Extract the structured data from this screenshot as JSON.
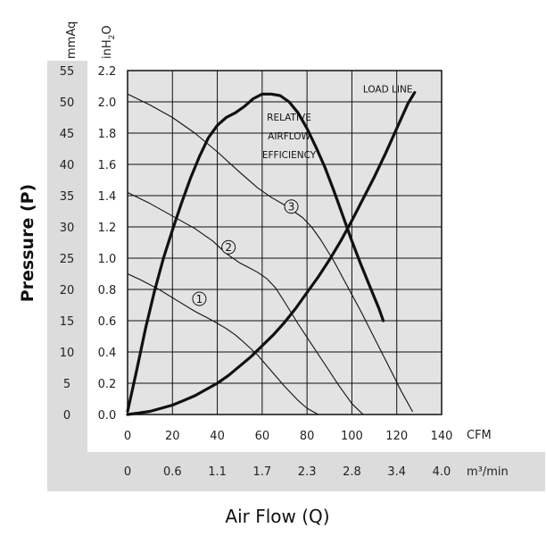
{
  "chart_data": {
    "type": "line",
    "title": "",
    "xlabel": "Air Flow (Q)",
    "ylabel": "Pressure (P)",
    "x_units_primary": "CFM",
    "x_units_secondary": "m³/min",
    "y_unit_left": "mmAq",
    "y_unit_right_base": "inH",
    "y_unit_right_sub": "2",
    "y_unit_right_end": "O",
    "xlim": [
      0,
      140
    ],
    "ylim": [
      0,
      2.2
    ],
    "x_ticks": [
      0,
      20,
      40,
      60,
      80,
      100,
      120,
      140
    ],
    "x_tick_labels": [
      "0",
      "20",
      "40",
      "60",
      "80",
      "100",
      "120",
      "140"
    ],
    "x_ticks_secondary": [
      "0",
      "0.6",
      "1.1",
      "1.7",
      "2.3",
      "2.8",
      "3.4",
      "4.0"
    ],
    "y_ticks": [
      0,
      0.2,
      0.4,
      0.6,
      0.8,
      1.0,
      1.2,
      1.4,
      1.6,
      1.8,
      2.0,
      2.2
    ],
    "y_tick_labels_inH2O": [
      "0.0",
      "0.2",
      "0.4",
      "0.6",
      "0.8",
      "1.0",
      "1.2",
      "1.4",
      "1.6",
      "1.8",
      "2.0",
      "2.2"
    ],
    "y_tick_labels_mmAq": [
      "0",
      "5",
      "10",
      "15",
      "20",
      "25",
      "30",
      "35",
      "40",
      "45",
      "50",
      "55"
    ],
    "grid": true,
    "series": [
      {
        "name": "1",
        "label": "①",
        "label_pos": [
          32,
          0.74
        ],
        "x": [
          0,
          6,
          14,
          22,
          30,
          38,
          44,
          48,
          52,
          58,
          64,
          70,
          76,
          80,
          85
        ],
        "y": [
          0.9,
          0.86,
          0.8,
          0.73,
          0.66,
          0.6,
          0.55,
          0.51,
          0.46,
          0.38,
          0.28,
          0.18,
          0.09,
          0.04,
          0.0
        ]
      },
      {
        "name": "2",
        "label": "②",
        "label_pos": [
          45,
          1.07
        ],
        "x": [
          0,
          10,
          20,
          30,
          38,
          44,
          50,
          54,
          58,
          62,
          66,
          70,
          76,
          82,
          88,
          94,
          100,
          105
        ],
        "y": [
          1.42,
          1.35,
          1.27,
          1.19,
          1.11,
          1.03,
          0.97,
          0.94,
          0.91,
          0.87,
          0.81,
          0.72,
          0.58,
          0.45,
          0.32,
          0.19,
          0.07,
          0.0
        ]
      },
      {
        "name": "3",
        "label": "③",
        "label_pos": [
          73,
          1.33
        ],
        "x": [
          0,
          10,
          20,
          30,
          40,
          50,
          58,
          64,
          70,
          74,
          78,
          82,
          86,
          92,
          98,
          104,
          110,
          116,
          122,
          127
        ],
        "y": [
          2.05,
          1.98,
          1.9,
          1.8,
          1.68,
          1.55,
          1.45,
          1.39,
          1.34,
          1.3,
          1.26,
          1.2,
          1.12,
          0.98,
          0.82,
          0.66,
          0.49,
          0.32,
          0.15,
          0.02
        ]
      },
      {
        "name": "Relative Airflow Efficiency",
        "style": "bold",
        "x": [
          0,
          4,
          8,
          12,
          16,
          20,
          24,
          28,
          32,
          36,
          40,
          44,
          48,
          52,
          56,
          60,
          64,
          68,
          72,
          76,
          80,
          84,
          88,
          92,
          96,
          100,
          104,
          108,
          112,
          114
        ],
        "y": [
          0.02,
          0.28,
          0.55,
          0.79,
          1.0,
          1.18,
          1.35,
          1.51,
          1.65,
          1.77,
          1.85,
          1.9,
          1.93,
          1.97,
          2.02,
          2.05,
          2.05,
          2.04,
          2.0,
          1.93,
          1.83,
          1.71,
          1.58,
          1.43,
          1.27,
          1.11,
          0.96,
          0.82,
          0.68,
          0.6
        ]
      },
      {
        "name": "Load Line",
        "style": "bold",
        "x": [
          0,
          5,
          10,
          15,
          20,
          25,
          30,
          35,
          40,
          45,
          50,
          55,
          60,
          65,
          70,
          75,
          80,
          85,
          90,
          95,
          100,
          105,
          110,
          115,
          120,
          125,
          128
        ],
        "y": [
          0.0,
          0.01,
          0.02,
          0.04,
          0.06,
          0.09,
          0.12,
          0.16,
          0.2,
          0.25,
          0.31,
          0.37,
          0.44,
          0.51,
          0.59,
          0.68,
          0.78,
          0.88,
          0.99,
          1.11,
          1.24,
          1.38,
          1.52,
          1.67,
          1.83,
          1.99,
          2.06
        ]
      }
    ],
    "annotations": [
      {
        "text": "RELATIVE",
        "x": 72,
        "y": 1.88
      },
      {
        "text": "AIRFLOW",
        "x": 72,
        "y": 1.76
      },
      {
        "text": "EFFICIENCY",
        "x": 72,
        "y": 1.64
      },
      {
        "text": "LOAD LINE",
        "x": 116,
        "y": 2.06
      }
    ]
  }
}
